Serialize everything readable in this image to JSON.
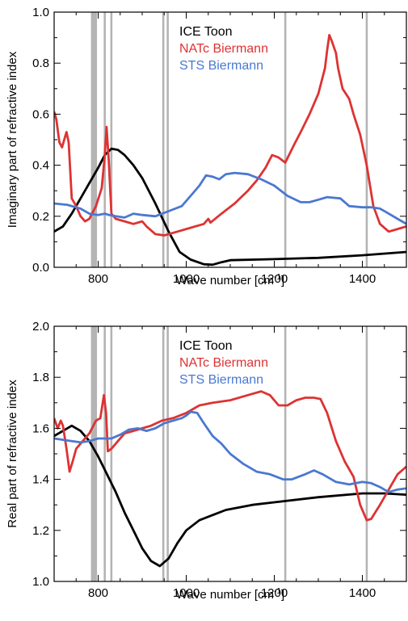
{
  "chart_data": [
    {
      "type": "line",
      "xlabel": "Wave number [cm",
      "xlabel_sup": "-1",
      "xlabel_end": "]",
      "ylabel": "Imaginary part of refractive index",
      "xlim": [
        700,
        1500
      ],
      "ylim": [
        0.0,
        1.0
      ],
      "xticks": [
        800,
        1000,
        1200,
        1400
      ],
      "yticks": [
        "0.0",
        "0.2",
        "0.4",
        "0.6",
        "0.8",
        "1.0"
      ],
      "legend_position": "top-center",
      "vertical_lines": [
        786,
        789,
        792,
        795,
        815,
        830,
        948,
        958,
        1225,
        1410
      ],
      "series": [
        {
          "name": "ICE Toon",
          "color": "#000000",
          "points": [
            [
              700,
              0.14
            ],
            [
              720,
              0.16
            ],
            [
              740,
              0.21
            ],
            [
              760,
              0.27
            ],
            [
              780,
              0.33
            ],
            [
              800,
              0.39
            ],
            [
              815,
              0.44
            ],
            [
              830,
              0.465
            ],
            [
              845,
              0.46
            ],
            [
              860,
              0.44
            ],
            [
              880,
              0.4
            ],
            [
              900,
              0.35
            ],
            [
              930,
              0.25
            ],
            [
              960,
              0.14
            ],
            [
              985,
              0.06
            ],
            [
              1010,
              0.03
            ],
            [
              1040,
              0.012
            ],
            [
              1060,
              0.01
            ],
            [
              1080,
              0.02
            ],
            [
              1100,
              0.028
            ],
            [
              1200,
              0.032
            ],
            [
              1300,
              0.037
            ],
            [
              1400,
              0.047
            ],
            [
              1500,
              0.06
            ]
          ]
        },
        {
          "name": "NATc Biermann",
          "color": "#dd3333",
          "points": [
            [
              700,
              0.61
            ],
            [
              705,
              0.58
            ],
            [
              712,
              0.49
            ],
            [
              718,
              0.47
            ],
            [
              723,
              0.5
            ],
            [
              728,
              0.53
            ],
            [
              733,
              0.49
            ],
            [
              740,
              0.27
            ],
            [
              750,
              0.24
            ],
            [
              760,
              0.2
            ],
            [
              770,
              0.18
            ],
            [
              780,
              0.19
            ],
            [
              795,
              0.24
            ],
            [
              808,
              0.31
            ],
            [
              815,
              0.44
            ],
            [
              819,
              0.55
            ],
            [
              824,
              0.42
            ],
            [
              830,
              0.21
            ],
            [
              840,
              0.19
            ],
            [
              860,
              0.18
            ],
            [
              880,
              0.17
            ],
            [
              900,
              0.18
            ],
            [
              910,
              0.16
            ],
            [
              930,
              0.13
            ],
            [
              950,
              0.125
            ],
            [
              980,
              0.14
            ],
            [
              1000,
              0.15
            ],
            [
              1040,
              0.17
            ],
            [
              1050,
              0.19
            ],
            [
              1055,
              0.175
            ],
            [
              1080,
              0.21
            ],
            [
              1110,
              0.25
            ],
            [
              1140,
              0.3
            ],
            [
              1160,
              0.34
            ],
            [
              1180,
              0.39
            ],
            [
              1195,
              0.44
            ],
            [
              1210,
              0.43
            ],
            [
              1225,
              0.41
            ],
            [
              1245,
              0.48
            ],
            [
              1260,
              0.53
            ],
            [
              1280,
              0.6
            ],
            [
              1300,
              0.68
            ],
            [
              1315,
              0.78
            ],
            [
              1320,
              0.85
            ],
            [
              1325,
              0.91
            ],
            [
              1330,
              0.89
            ],
            [
              1340,
              0.84
            ],
            [
              1345,
              0.78
            ],
            [
              1355,
              0.7
            ],
            [
              1370,
              0.66
            ],
            [
              1380,
              0.6
            ],
            [
              1395,
              0.52
            ],
            [
              1410,
              0.4
            ],
            [
              1425,
              0.24
            ],
            [
              1440,
              0.17
            ],
            [
              1460,
              0.14
            ],
            [
              1480,
              0.15
            ],
            [
              1500,
              0.16
            ]
          ]
        },
        {
          "name": "STS Biermann",
          "color": "#4a78d0",
          "points": [
            [
              700,
              0.25
            ],
            [
              730,
              0.245
            ],
            [
              760,
              0.23
            ],
            [
              780,
              0.21
            ],
            [
              800,
              0.205
            ],
            [
              815,
              0.21
            ],
            [
              825,
              0.205
            ],
            [
              840,
              0.2
            ],
            [
              860,
              0.195
            ],
            [
              880,
              0.21
            ],
            [
              900,
              0.205
            ],
            [
              930,
              0.2
            ],
            [
              960,
              0.22
            ],
            [
              990,
              0.24
            ],
            [
              1010,
              0.28
            ],
            [
              1030,
              0.32
            ],
            [
              1045,
              0.36
            ],
            [
              1060,
              0.355
            ],
            [
              1075,
              0.345
            ],
            [
              1090,
              0.365
            ],
            [
              1110,
              0.37
            ],
            [
              1140,
              0.365
            ],
            [
              1170,
              0.345
            ],
            [
              1200,
              0.32
            ],
            [
              1230,
              0.28
            ],
            [
              1260,
              0.255
            ],
            [
              1280,
              0.255
            ],
            [
              1300,
              0.265
            ],
            [
              1320,
              0.275
            ],
            [
              1350,
              0.27
            ],
            [
              1370,
              0.24
            ],
            [
              1400,
              0.235
            ],
            [
              1420,
              0.235
            ],
            [
              1440,
              0.23
            ],
            [
              1460,
              0.21
            ],
            [
              1480,
              0.19
            ],
            [
              1500,
              0.17
            ]
          ]
        }
      ]
    },
    {
      "type": "line",
      "xlabel": "Wave number [cm",
      "xlabel_sup": "-1",
      "xlabel_end": "]",
      "ylabel": "Real part of refractive index",
      "xlim": [
        700,
        1500
      ],
      "ylim": [
        1.0,
        2.0
      ],
      "xticks": [
        800,
        1000,
        1200,
        1400
      ],
      "yticks": [
        "1.0",
        "1.2",
        "1.4",
        "1.6",
        "1.8",
        "2.0"
      ],
      "legend_position": "top-center",
      "vertical_lines": [
        786,
        789,
        792,
        795,
        815,
        830,
        948,
        958,
        1225,
        1410
      ],
      "series": [
        {
          "name": "ICE Toon",
          "color": "#000000",
          "points": [
            [
              700,
              1.57
            ],
            [
              720,
              1.59
            ],
            [
              740,
              1.61
            ],
            [
              760,
              1.59
            ],
            [
              780,
              1.55
            ],
            [
              800,
              1.49
            ],
            [
              820,
              1.42
            ],
            [
              840,
              1.35
            ],
            [
              860,
              1.27
            ],
            [
              880,
              1.2
            ],
            [
              900,
              1.13
            ],
            [
              920,
              1.08
            ],
            [
              940,
              1.06
            ],
            [
              960,
              1.09
            ],
            [
              980,
              1.15
            ],
            [
              1000,
              1.2
            ],
            [
              1030,
              1.24
            ],
            [
              1060,
              1.26
            ],
            [
              1090,
              1.28
            ],
            [
              1150,
              1.3
            ],
            [
              1200,
              1.31
            ],
            [
              1300,
              1.33
            ],
            [
              1400,
              1.345
            ],
            [
              1450,
              1.345
            ],
            [
              1500,
              1.34
            ]
          ]
        },
        {
          "name": "NATc Biermann",
          "color": "#dd3333",
          "points": [
            [
              700,
              1.64
            ],
            [
              708,
              1.6
            ],
            [
              715,
              1.63
            ],
            [
              720,
              1.61
            ],
            [
              728,
              1.52
            ],
            [
              735,
              1.43
            ],
            [
              742,
              1.47
            ],
            [
              750,
              1.52
            ],
            [
              765,
              1.55
            ],
            [
              780,
              1.58
            ],
            [
              795,
              1.63
            ],
            [
              805,
              1.64
            ],
            [
              813,
              1.73
            ],
            [
              818,
              1.66
            ],
            [
              822,
              1.51
            ],
            [
              830,
              1.52
            ],
            [
              845,
              1.55
            ],
            [
              860,
              1.58
            ],
            [
              880,
              1.59
            ],
            [
              900,
              1.6
            ],
            [
              920,
              1.61
            ],
            [
              945,
              1.63
            ],
            [
              970,
              1.64
            ],
            [
              1000,
              1.66
            ],
            [
              1030,
              1.69
            ],
            [
              1060,
              1.7
            ],
            [
              1100,
              1.71
            ],
            [
              1140,
              1.73
            ],
            [
              1170,
              1.745
            ],
            [
              1190,
              1.73
            ],
            [
              1210,
              1.69
            ],
            [
              1230,
              1.69
            ],
            [
              1250,
              1.71
            ],
            [
              1270,
              1.72
            ],
            [
              1290,
              1.72
            ],
            [
              1305,
              1.715
            ],
            [
              1320,
              1.66
            ],
            [
              1340,
              1.55
            ],
            [
              1360,
              1.47
            ],
            [
              1380,
              1.41
            ],
            [
              1395,
              1.3
            ],
            [
              1410,
              1.24
            ],
            [
              1420,
              1.245
            ],
            [
              1440,
              1.3
            ],
            [
              1460,
              1.36
            ],
            [
              1480,
              1.42
            ],
            [
              1500,
              1.45
            ]
          ]
        },
        {
          "name": "STS Biermann",
          "color": "#4a78d0",
          "points": [
            [
              700,
              1.56
            ],
            [
              720,
              1.555
            ],
            [
              740,
              1.55
            ],
            [
              760,
              1.545
            ],
            [
              780,
              1.55
            ],
            [
              800,
              1.56
            ],
            [
              815,
              1.56
            ],
            [
              830,
              1.56
            ],
            [
              850,
              1.575
            ],
            [
              870,
              1.595
            ],
            [
              890,
              1.6
            ],
            [
              910,
              1.59
            ],
            [
              930,
              1.6
            ],
            [
              950,
              1.62
            ],
            [
              970,
              1.63
            ],
            [
              990,
              1.64
            ],
            [
              1000,
              1.65
            ],
            [
              1010,
              1.665
            ],
            [
              1025,
              1.66
            ],
            [
              1040,
              1.62
            ],
            [
              1060,
              1.57
            ],
            [
              1080,
              1.54
            ],
            [
              1100,
              1.5
            ],
            [
              1130,
              1.46
            ],
            [
              1160,
              1.43
            ],
            [
              1190,
              1.42
            ],
            [
              1220,
              1.4
            ],
            [
              1240,
              1.4
            ],
            [
              1270,
              1.42
            ],
            [
              1290,
              1.435
            ],
            [
              1310,
              1.42
            ],
            [
              1340,
              1.39
            ],
            [
              1370,
              1.38
            ],
            [
              1400,
              1.39
            ],
            [
              1420,
              1.385
            ],
            [
              1440,
              1.37
            ],
            [
              1460,
              1.35
            ],
            [
              1480,
              1.36
            ],
            [
              1500,
              1.365
            ]
          ]
        }
      ]
    }
  ]
}
